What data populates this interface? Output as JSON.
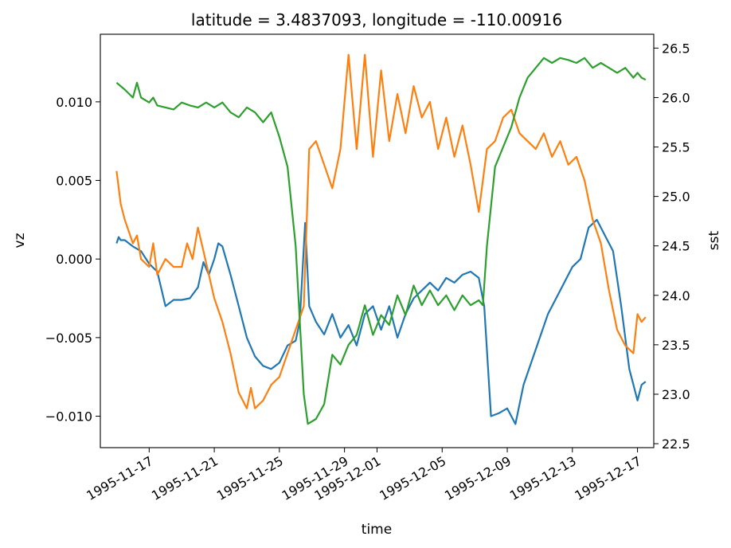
{
  "chart_data": {
    "type": "line",
    "title": "latitude = 3.4837093, longitude = -110.00916",
    "xlabel": "time",
    "ylabel_left": "vz",
    "ylabel_right": "sst",
    "x_range": [
      "1995-11-14T00:00",
      "1995-12-18T00:00"
    ],
    "ylim_left": [
      -0.012,
      0.0143
    ],
    "ylim_right": [
      22.46,
      26.64
    ],
    "x_ticks": [
      {
        "label": "1995-11-17",
        "date": "1995-11-17"
      },
      {
        "label": "1995-11-21",
        "date": "1995-11-21"
      },
      {
        "label": "1995-11-25",
        "date": "1995-11-25"
      },
      {
        "label": "1995-11-29",
        "date": "1995-11-29"
      },
      {
        "label": "1995-12-01",
        "date": "1995-12-01"
      },
      {
        "label": "1995-12-05",
        "date": "1995-12-05"
      },
      {
        "label": "1995-12-09",
        "date": "1995-12-09"
      },
      {
        "label": "1995-12-13",
        "date": "1995-12-13"
      },
      {
        "label": "1995-12-17",
        "date": "1995-12-17"
      }
    ],
    "y_left_ticks": [
      {
        "label": "−0.010",
        "value": -0.01
      },
      {
        "label": "−0.005",
        "value": -0.005
      },
      {
        "label": "0.000",
        "value": 0.0
      },
      {
        "label": "0.005",
        "value": 0.005
      },
      {
        "label": "0.010",
        "value": 0.01
      }
    ],
    "y_right_ticks": [
      {
        "label": "22.5",
        "value": 22.5
      },
      {
        "label": "23.0",
        "value": 23.0
      },
      {
        "label": "23.5",
        "value": 23.5
      },
      {
        "label": "24.0",
        "value": 24.0
      },
      {
        "label": "24.5",
        "value": 24.5
      },
      {
        "label": "25.0",
        "value": 25.0
      },
      {
        "label": "25.5",
        "value": 25.5
      },
      {
        "label": "26.0",
        "value": 26.0
      },
      {
        "label": "26.5",
        "value": 26.5
      }
    ],
    "grid": false,
    "legend": "none",
    "series": [
      {
        "axis": "left",
        "color": "#1f77b4",
        "points": [
          [
            "1995-11-15T00:00",
            0.001
          ],
          [
            "1995-11-15T03:00",
            0.0014
          ],
          [
            "1995-11-15T06:00",
            0.0012
          ],
          [
            "1995-11-15T12:00",
            0.0012
          ],
          [
            "1995-11-16T00:00",
            0.0008
          ],
          [
            "1995-11-16T12:00",
            0.0005
          ],
          [
            "1995-11-17T00:00",
            -0.0003
          ],
          [
            "1995-11-17T12:00",
            -0.0008
          ],
          [
            "1995-11-18T00:00",
            -0.003
          ],
          [
            "1995-11-18T12:00",
            -0.0026
          ],
          [
            "1995-11-19T00:00",
            -0.0026
          ],
          [
            "1995-11-19T12:00",
            -0.0025
          ],
          [
            "1995-11-20T00:00",
            -0.0018
          ],
          [
            "1995-11-20T08:00",
            -0.0002
          ],
          [
            "1995-11-20T16:00",
            -0.001
          ],
          [
            "1995-11-21T00:00",
            0.0
          ],
          [
            "1995-11-21T06:00",
            0.001
          ],
          [
            "1995-11-21T12:00",
            0.0008
          ],
          [
            "1995-11-22T00:00",
            -0.001
          ],
          [
            "1995-11-22T12:00",
            -0.003
          ],
          [
            "1995-11-23T00:00",
            -0.005
          ],
          [
            "1995-11-23T12:00",
            -0.0062
          ],
          [
            "1995-11-24T00:00",
            -0.0068
          ],
          [
            "1995-11-24T12:00",
            -0.007
          ],
          [
            "1995-11-25T00:00",
            -0.0066
          ],
          [
            "1995-11-25T12:00",
            -0.0055
          ],
          [
            "1995-11-26T00:00",
            -0.0052
          ],
          [
            "1995-11-26T06:00",
            -0.004
          ],
          [
            "1995-11-26T14:00",
            0.0023
          ],
          [
            "1995-11-26T20:00",
            -0.003
          ],
          [
            "1995-11-27T06:00",
            -0.004
          ],
          [
            "1995-11-27T18:00",
            -0.0048
          ],
          [
            "1995-11-28T06:00",
            -0.0035
          ],
          [
            "1995-11-28T18:00",
            -0.005
          ],
          [
            "1995-11-29T06:00",
            -0.0042
          ],
          [
            "1995-11-29T18:00",
            -0.0055
          ],
          [
            "1995-11-30T06:00",
            -0.0035
          ],
          [
            "1995-11-30T18:00",
            -0.003
          ],
          [
            "1995-12-01T06:00",
            -0.0045
          ],
          [
            "1995-12-01T18:00",
            -0.003
          ],
          [
            "1995-12-02T06:00",
            -0.005
          ],
          [
            "1995-12-02T18:00",
            -0.0035
          ],
          [
            "1995-12-03T06:00",
            -0.0025
          ],
          [
            "1995-12-03T18:00",
            -0.002
          ],
          [
            "1995-12-04T06:00",
            -0.0015
          ],
          [
            "1995-12-04T18:00",
            -0.002
          ],
          [
            "1995-12-05T06:00",
            -0.0012
          ],
          [
            "1995-12-05T18:00",
            -0.0015
          ],
          [
            "1995-12-06T06:00",
            -0.001
          ],
          [
            "1995-12-06T18:00",
            -0.0008
          ],
          [
            "1995-12-07T06:00",
            -0.0012
          ],
          [
            "1995-12-07T14:00",
            -0.003
          ],
          [
            "1995-12-08T00:00",
            -0.01
          ],
          [
            "1995-12-08T12:00",
            -0.0098
          ],
          [
            "1995-12-09T00:00",
            -0.0095
          ],
          [
            "1995-12-09T12:00",
            -0.0105
          ],
          [
            "1995-12-10T00:00",
            -0.008
          ],
          [
            "1995-12-10T12:00",
            -0.0065
          ],
          [
            "1995-12-11T00:00",
            -0.005
          ],
          [
            "1995-12-11T12:00",
            -0.0035
          ],
          [
            "1995-12-12T00:00",
            -0.0025
          ],
          [
            "1995-12-12T12:00",
            -0.0015
          ],
          [
            "1995-12-13T00:00",
            -0.0005
          ],
          [
            "1995-12-13T12:00",
            0.0
          ],
          [
            "1995-12-14T00:00",
            0.002
          ],
          [
            "1995-12-14T12:00",
            0.0025
          ],
          [
            "1995-12-15T00:00",
            0.0015
          ],
          [
            "1995-12-15T12:00",
            0.0005
          ],
          [
            "1995-12-16T00:00",
            -0.003
          ],
          [
            "1995-12-16T12:00",
            -0.007
          ],
          [
            "1995-12-17T00:00",
            -0.009
          ],
          [
            "1995-12-17T06:00",
            -0.008
          ],
          [
            "1995-12-17T12:00",
            -0.0078
          ]
        ]
      },
      {
        "axis": "left",
        "color": "#ff7f0e",
        "points": [
          [
            "1995-11-15T00:00",
            0.0056
          ],
          [
            "1995-11-15T06:00",
            0.0035
          ],
          [
            "1995-11-15T12:00",
            0.0025
          ],
          [
            "1995-11-16T00:00",
            0.001
          ],
          [
            "1995-11-16T06:00",
            0.0015
          ],
          [
            "1995-11-16T12:00",
            0.0
          ],
          [
            "1995-11-17T00:00",
            -0.0005
          ],
          [
            "1995-11-17T06:00",
            0.001
          ],
          [
            "1995-11-17T12:00",
            -0.001
          ],
          [
            "1995-11-18T00:00",
            0.0
          ],
          [
            "1995-11-18T12:00",
            -0.0005
          ],
          [
            "1995-11-19T00:00",
            -0.0005
          ],
          [
            "1995-11-19T08:00",
            0.001
          ],
          [
            "1995-11-19T16:00",
            0.0
          ],
          [
            "1995-11-20T00:00",
            0.002
          ],
          [
            "1995-11-20T08:00",
            0.0005
          ],
          [
            "1995-11-20T16:00",
            -0.001
          ],
          [
            "1995-11-21T00:00",
            -0.0025
          ],
          [
            "1995-11-21T12:00",
            -0.004
          ],
          [
            "1995-11-22T00:00",
            -0.006
          ],
          [
            "1995-11-22T12:00",
            -0.0085
          ],
          [
            "1995-11-23T00:00",
            -0.0095
          ],
          [
            "1995-11-23T06:00",
            -0.0082
          ],
          [
            "1995-11-23T12:00",
            -0.0095
          ],
          [
            "1995-11-24T00:00",
            -0.009
          ],
          [
            "1995-11-24T12:00",
            -0.008
          ],
          [
            "1995-11-25T00:00",
            -0.0075
          ],
          [
            "1995-11-25T12:00",
            -0.006
          ],
          [
            "1995-11-26T00:00",
            -0.0045
          ],
          [
            "1995-11-26T12:00",
            -0.003
          ],
          [
            "1995-11-26T20:00",
            0.007
          ],
          [
            "1995-11-27T06:00",
            0.0075
          ],
          [
            "1995-11-27T18:00",
            0.006
          ],
          [
            "1995-11-28T06:00",
            0.0045
          ],
          [
            "1995-11-28T18:00",
            0.007
          ],
          [
            "1995-11-29T06:00",
            0.013
          ],
          [
            "1995-11-29T18:00",
            0.007
          ],
          [
            "1995-11-30T06:00",
            0.013
          ],
          [
            "1995-11-30T18:00",
            0.0065
          ],
          [
            "1995-12-01T06:00",
            0.012
          ],
          [
            "1995-12-01T18:00",
            0.0075
          ],
          [
            "1995-12-02T06:00",
            0.0105
          ],
          [
            "1995-12-02T18:00",
            0.008
          ],
          [
            "1995-12-03T06:00",
            0.011
          ],
          [
            "1995-12-03T18:00",
            0.009
          ],
          [
            "1995-12-04T06:00",
            0.01
          ],
          [
            "1995-12-04T18:00",
            0.007
          ],
          [
            "1995-12-05T06:00",
            0.009
          ],
          [
            "1995-12-05T18:00",
            0.0065
          ],
          [
            "1995-12-06T06:00",
            0.0085
          ],
          [
            "1995-12-06T18:00",
            0.006
          ],
          [
            "1995-12-07T06:00",
            0.003
          ],
          [
            "1995-12-07T18:00",
            0.007
          ],
          [
            "1995-12-08T06:00",
            0.0075
          ],
          [
            "1995-12-08T18:00",
            0.009
          ],
          [
            "1995-12-09T06:00",
            0.0095
          ],
          [
            "1995-12-09T18:00",
            0.008
          ],
          [
            "1995-12-10T06:00",
            0.0075
          ],
          [
            "1995-12-10T18:00",
            0.007
          ],
          [
            "1995-12-11T06:00",
            0.008
          ],
          [
            "1995-12-11T18:00",
            0.0065
          ],
          [
            "1995-12-12T06:00",
            0.0075
          ],
          [
            "1995-12-12T18:00",
            0.006
          ],
          [
            "1995-12-13T06:00",
            0.0065
          ],
          [
            "1995-12-13T18:00",
            0.005
          ],
          [
            "1995-12-14T06:00",
            0.0025
          ],
          [
            "1995-12-14T18:00",
            0.001
          ],
          [
            "1995-12-15T06:00",
            -0.002
          ],
          [
            "1995-12-15T18:00",
            -0.0045
          ],
          [
            "1995-12-16T06:00",
            -0.0055
          ],
          [
            "1995-12-16T18:00",
            -0.006
          ],
          [
            "1995-12-17T00:00",
            -0.0035
          ],
          [
            "1995-12-17T06:00",
            -0.004
          ],
          [
            "1995-12-17T12:00",
            -0.0037
          ]
        ]
      },
      {
        "axis": "right",
        "color": "#2ca02c",
        "points": [
          [
            "1995-11-15T00:00",
            26.15
          ],
          [
            "1995-11-15T12:00",
            26.08
          ],
          [
            "1995-11-16T00:00",
            26.0
          ],
          [
            "1995-11-16T06:00",
            26.15
          ],
          [
            "1995-11-16T12:00",
            26.0
          ],
          [
            "1995-11-17T00:00",
            25.95
          ],
          [
            "1995-11-17T06:00",
            26.0
          ],
          [
            "1995-11-17T12:00",
            25.92
          ],
          [
            "1995-11-18T00:00",
            25.9
          ],
          [
            "1995-11-18T12:00",
            25.88
          ],
          [
            "1995-11-19T00:00",
            25.95
          ],
          [
            "1995-11-19T12:00",
            25.92
          ],
          [
            "1995-11-20T00:00",
            25.9
          ],
          [
            "1995-11-20T12:00",
            25.95
          ],
          [
            "1995-11-21T00:00",
            25.9
          ],
          [
            "1995-11-21T12:00",
            25.95
          ],
          [
            "1995-11-22T00:00",
            25.85
          ],
          [
            "1995-11-22T12:00",
            25.8
          ],
          [
            "1995-11-23T00:00",
            25.9
          ],
          [
            "1995-11-23T12:00",
            25.85
          ],
          [
            "1995-11-24T00:00",
            25.75
          ],
          [
            "1995-11-24T12:00",
            25.85
          ],
          [
            "1995-11-25T00:00",
            25.6
          ],
          [
            "1995-11-25T12:00",
            25.3
          ],
          [
            "1995-11-26T00:00",
            24.5
          ],
          [
            "1995-11-26T12:00",
            23.0
          ],
          [
            "1995-11-26T18:00",
            22.7
          ],
          [
            "1995-11-27T06:00",
            22.75
          ],
          [
            "1995-11-27T18:00",
            22.9
          ],
          [
            "1995-11-28T06:00",
            23.4
          ],
          [
            "1995-11-28T18:00",
            23.3
          ],
          [
            "1995-11-29T06:00",
            23.5
          ],
          [
            "1995-11-29T18:00",
            23.6
          ],
          [
            "1995-11-30T06:00",
            23.9
          ],
          [
            "1995-11-30T18:00",
            23.6
          ],
          [
            "1995-12-01T06:00",
            23.8
          ],
          [
            "1995-12-01T18:00",
            23.7
          ],
          [
            "1995-12-02T06:00",
            24.0
          ],
          [
            "1995-12-02T18:00",
            23.8
          ],
          [
            "1995-12-03T06:00",
            24.1
          ],
          [
            "1995-12-03T18:00",
            23.9
          ],
          [
            "1995-12-04T06:00",
            24.05
          ],
          [
            "1995-12-04T18:00",
            23.9
          ],
          [
            "1995-12-05T06:00",
            24.0
          ],
          [
            "1995-12-05T18:00",
            23.85
          ],
          [
            "1995-12-06T06:00",
            24.0
          ],
          [
            "1995-12-06T18:00",
            23.9
          ],
          [
            "1995-12-07T06:00",
            23.95
          ],
          [
            "1995-12-07T12:00",
            23.9
          ],
          [
            "1995-12-07T18:00",
            24.5
          ],
          [
            "1995-12-08T06:00",
            25.3
          ],
          [
            "1995-12-08T18:00",
            25.5
          ],
          [
            "1995-12-09T06:00",
            25.7
          ],
          [
            "1995-12-09T18:00",
            26.0
          ],
          [
            "1995-12-10T06:00",
            26.2
          ],
          [
            "1995-12-10T18:00",
            26.3
          ],
          [
            "1995-12-11T06:00",
            26.4
          ],
          [
            "1995-12-11T18:00",
            26.35
          ],
          [
            "1995-12-12T06:00",
            26.4
          ],
          [
            "1995-12-12T18:00",
            26.38
          ],
          [
            "1995-12-13T06:00",
            26.35
          ],
          [
            "1995-12-13T18:00",
            26.4
          ],
          [
            "1995-12-14T06:00",
            26.3
          ],
          [
            "1995-12-14T18:00",
            26.35
          ],
          [
            "1995-12-15T06:00",
            26.3
          ],
          [
            "1995-12-15T18:00",
            26.25
          ],
          [
            "1995-12-16T06:00",
            26.3
          ],
          [
            "1995-12-16T18:00",
            26.2
          ],
          [
            "1995-12-17T00:00",
            26.25
          ],
          [
            "1995-12-17T06:00",
            26.2
          ],
          [
            "1995-12-17T12:00",
            26.18
          ]
        ]
      }
    ]
  }
}
